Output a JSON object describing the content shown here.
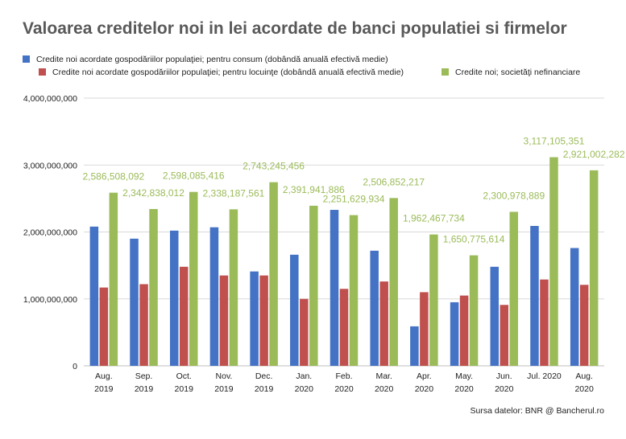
{
  "title": "Valoarea creditelor noi in lei acordate de banci populatiei si firmelor",
  "source": "Sursa datelor: BNR @ Bancherul.ro",
  "chart_data": {
    "type": "bar",
    "categories": [
      [
        "Aug.",
        "2019"
      ],
      [
        "Sep.",
        "2019"
      ],
      [
        "Oct.",
        "2019"
      ],
      [
        "Nov.",
        "2019"
      ],
      [
        "Dec.",
        "2019"
      ],
      [
        "Jan.",
        "2020"
      ],
      [
        "Feb.",
        "2020"
      ],
      [
        "Mar.",
        "2020"
      ],
      [
        "Apr.",
        "2020"
      ],
      [
        "May.",
        "2020"
      ],
      [
        "Jun.",
        "2020"
      ],
      [
        "Jul. 2020",
        ""
      ],
      [
        "Aug.",
        "2020"
      ]
    ],
    "series": [
      {
        "name": "Credite noi acordate gospodăriilor populaţiei; pentru consum (dobândă anuală efectivă medie)",
        "color": "#4472c4",
        "values": [
          2080000000,
          1900000000,
          2020000000,
          2070000000,
          1410000000,
          1660000000,
          2330000000,
          1720000000,
          590000000,
          950000000,
          1480000000,
          2090000000,
          1760000000
        ]
      },
      {
        "name": "Credite noi acordate gospodăriilor populaţiei; pentru locuinţe (dobândă anuală efectivă medie)",
        "color": "#c0504d",
        "values": [
          1170000000,
          1220000000,
          1480000000,
          1350000000,
          1350000000,
          1000000000,
          1150000000,
          1260000000,
          1100000000,
          1050000000,
          910000000,
          1290000000,
          1210000000
        ]
      },
      {
        "name": "Credite noi; societăţi nefinanciare",
        "color": "#9bbb59",
        "values": [
          2586508092,
          2342838012,
          2598085416,
          2338187561,
          2743245456,
          2391941886,
          2251629934,
          2506852217,
          1962467734,
          1650775614,
          2300978889,
          3117105351,
          2921002282
        ],
        "data_labels": [
          "2,586,508,092",
          "2,342,838,012",
          "2,598,085,416",
          "2,338,187,561",
          "2,743,245,456",
          "2,391,941,886",
          "2,251,629,934",
          "2,506,852,217",
          "1,962,467,734",
          "1,650,775,614",
          "2,300,978,889",
          "3,117,105,351",
          "2,921,002,282"
        ]
      }
    ],
    "y_ticks": [
      {
        "value": 0,
        "label": "0"
      },
      {
        "value": 1000000000,
        "label": "1,000,000,000"
      },
      {
        "value": 2000000000,
        "label": "2,000,000,000"
      },
      {
        "value": 3000000000,
        "label": "3,000,000,000"
      },
      {
        "value": 4000000000,
        "label": "4,000,000,000"
      }
    ],
    "ylim": [
      0,
      4000000000
    ],
    "grid": true,
    "legend_position": "top",
    "data_label_color": "#9bbb59"
  }
}
